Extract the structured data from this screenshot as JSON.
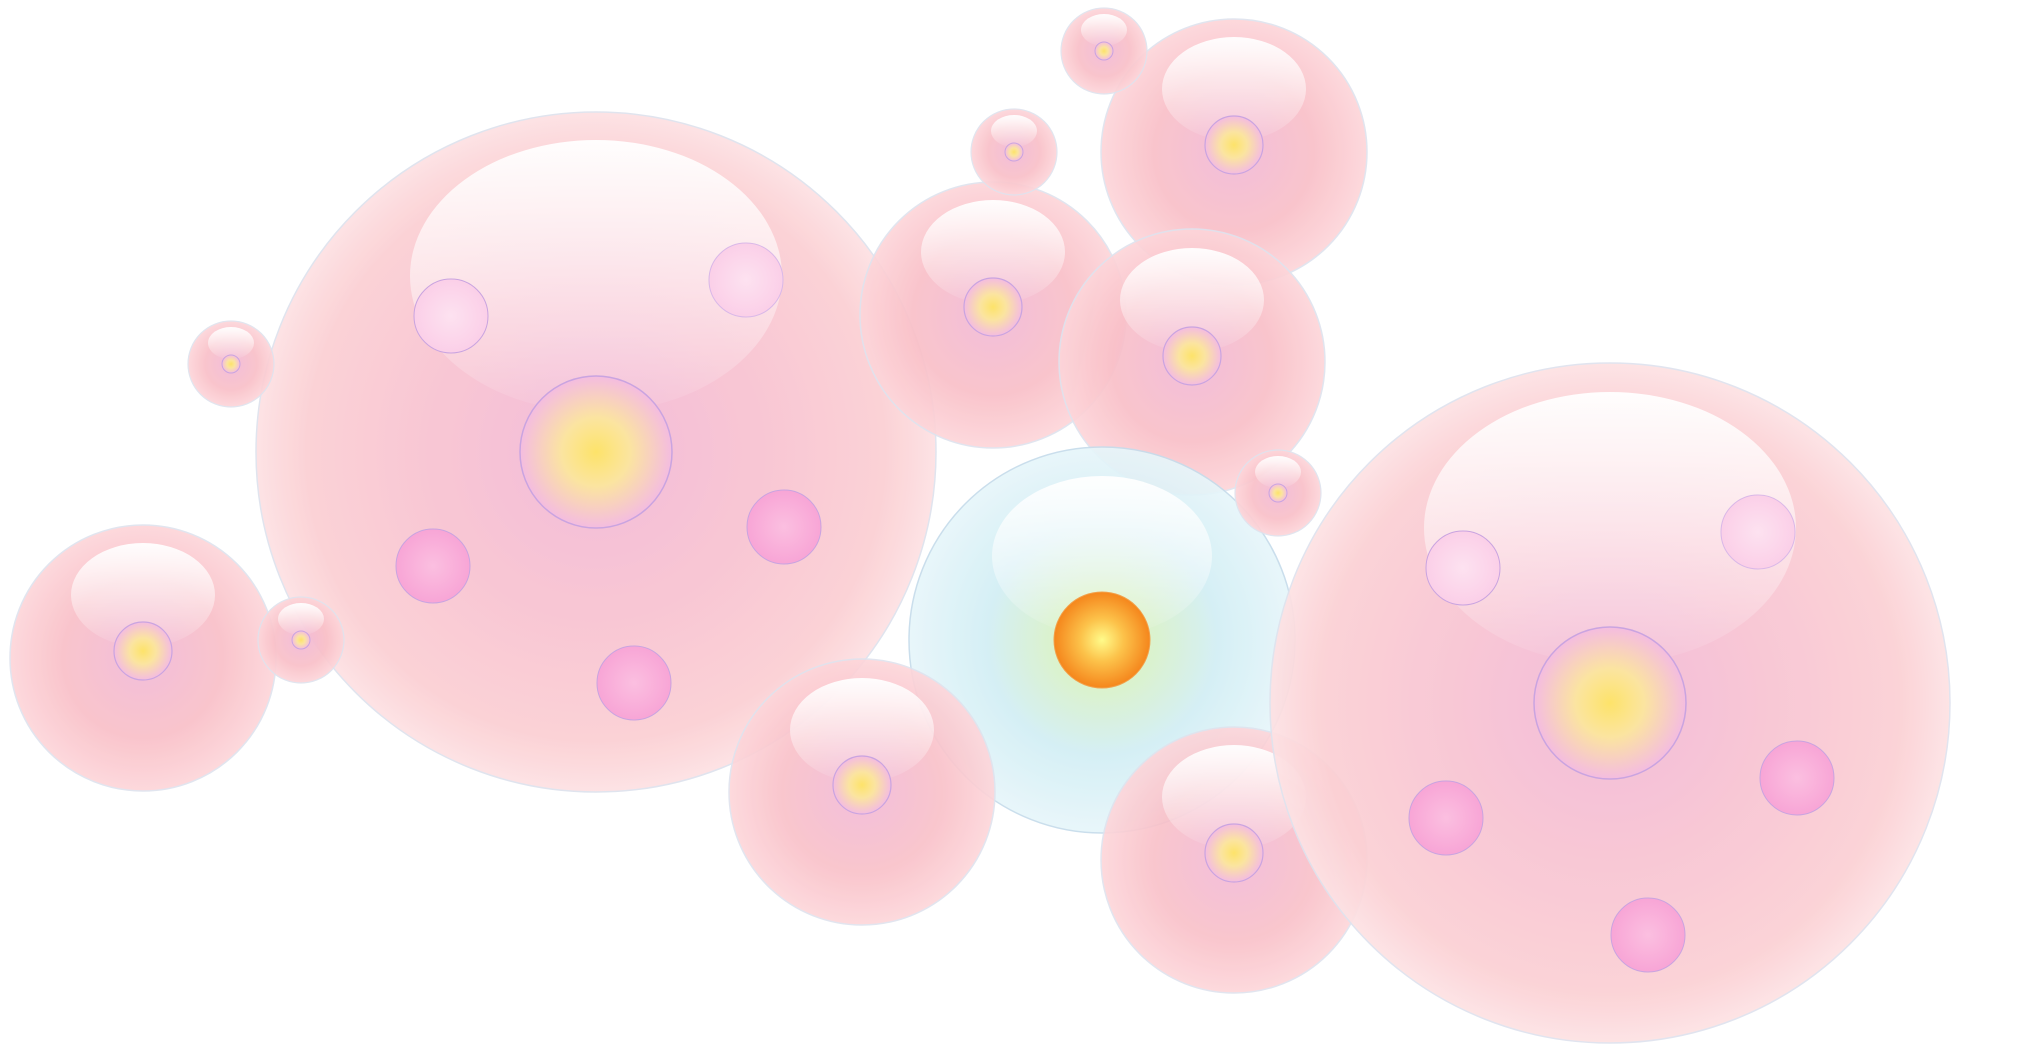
{
  "colors": {
    "background": "#ffffff",
    "pink_bubble_light": "#fde8ea",
    "pink_bubble_mid": "#f9c4cc",
    "pink_bubble_edge": "#f7b3bb",
    "pink_inner_glow": "#f2b8d8",
    "blue_bubble_light": "#e6f6fb",
    "blue_bubble_edge": "#c7e9f3",
    "core_yellow": "#fde36a",
    "core_orange_center": "#fffb8a",
    "core_orange_edge": "#f58a1f",
    "dot_pink": "#f9a8d8",
    "dot_pink_light": "#fcd7ec",
    "outline_lilac": "#c9a4e0",
    "outline_blue": "#c6dceb",
    "highlight_white": "#ffffff"
  },
  "bubbles": [
    {
      "name": "bubble-large-left",
      "variant": "pink",
      "nucleus": "yellow",
      "dots": 6
    },
    {
      "name": "bubble-large-right",
      "variant": "pink",
      "nucleus": "yellow",
      "dots": 6
    },
    {
      "name": "bubble-central-blue",
      "variant": "blue",
      "nucleus": "orange",
      "dots": 0
    },
    {
      "name": "bubble-medium-top-right",
      "variant": "pink",
      "nucleus": "yellow",
      "dots": 0
    },
    {
      "name": "bubble-medium-upper-center",
      "variant": "pink",
      "nucleus": "yellow",
      "dots": 0
    },
    {
      "name": "bubble-medium-center-right",
      "variant": "pink",
      "nucleus": "yellow",
      "dots": 0
    },
    {
      "name": "bubble-medium-left",
      "variant": "pink",
      "nucleus": "yellow",
      "dots": 0
    },
    {
      "name": "bubble-medium-bottom-center",
      "variant": "pink",
      "nucleus": "yellow",
      "dots": 0
    },
    {
      "name": "bubble-medium-bottom-right",
      "variant": "pink",
      "nucleus": "yellow",
      "dots": 0
    },
    {
      "name": "bubble-small-top",
      "variant": "pink",
      "nucleus": "yellow",
      "dots": 0
    },
    {
      "name": "bubble-small-upper",
      "variant": "pink",
      "nucleus": "yellow",
      "dots": 0
    },
    {
      "name": "bubble-small-left",
      "variant": "pink",
      "nucleus": "yellow",
      "dots": 0
    },
    {
      "name": "bubble-small-lower-left",
      "variant": "pink",
      "nucleus": "yellow",
      "dots": 0
    },
    {
      "name": "bubble-small-center-right",
      "variant": "pink",
      "nucleus": "yellow",
      "dots": 0
    }
  ]
}
